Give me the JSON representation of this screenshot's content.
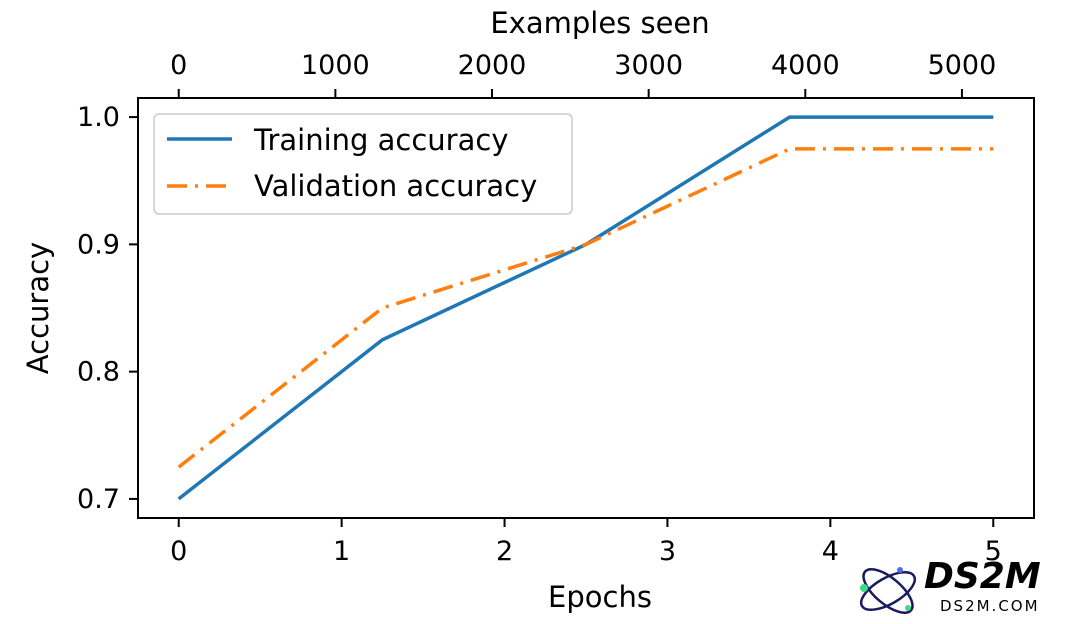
{
  "chart_data": {
    "type": "line",
    "x": [
      0,
      1.25,
      2.5,
      3.75,
      5.0
    ],
    "series": [
      {
        "name": "Training accuracy",
        "values": [
          0.7,
          0.825,
          0.9,
          1.0,
          1.0
        ],
        "color": "#1f77b4",
        "style": "solid"
      },
      {
        "name": "Validation accuracy",
        "values": [
          0.725,
          0.85,
          0.9,
          0.975,
          0.975
        ],
        "color": "#ff7f0e",
        "style": "dashdot"
      }
    ],
    "xlabel": "Epochs",
    "ylabel": "Accuracy",
    "top_xlabel": "Examples seen",
    "xlim": [
      -0.25,
      5.25
    ],
    "ylim": [
      0.685,
      1.015
    ],
    "xticks": [
      0,
      1,
      2,
      3,
      4,
      5
    ],
    "xtick_labels": [
      "0",
      "1",
      "2",
      "3",
      "4",
      "5"
    ],
    "yticks": [
      0.7,
      0.8,
      0.9,
      1.0
    ],
    "ytick_labels": [
      "0.7",
      "0.8",
      "0.9",
      "1.0"
    ],
    "top_ticks_examples": [
      0,
      1000,
      2000,
      3000,
      4000,
      5000
    ],
    "top_tick_labels": [
      "0",
      "1000",
      "2000",
      "3000",
      "4000",
      "5000"
    ],
    "top_axis_max_examples": 5200,
    "grid": false,
    "legend_position": "upper-left"
  },
  "watermark": {
    "brand": "DS2M",
    "url": "DS2M.COM",
    "color": "#1a1a5e",
    "accent_colors": [
      "#3ddc84",
      "#4a6cf7"
    ]
  }
}
